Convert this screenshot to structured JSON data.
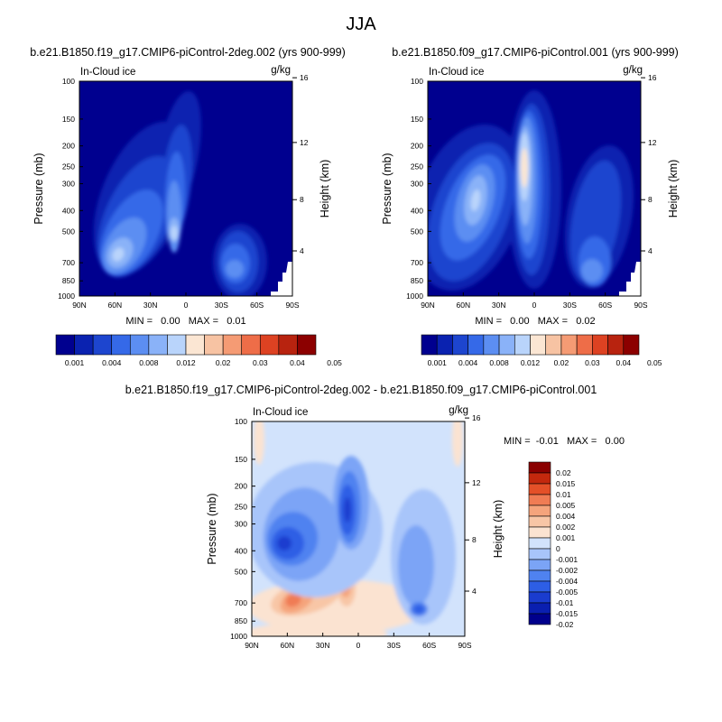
{
  "figure_title": "JJA",
  "chart_data": [
    {
      "type": "heatmap",
      "title": "b.e21.B1850.f19_g17.CMIP6-piControl-2deg.002 (yrs 900-999)",
      "subtitle": "In-Cloud ice",
      "units": "g/kg",
      "ylabel": "Pressure (mb)",
      "ylabel_right": "Height (km)",
      "x_ticks": [
        "90N",
        "60N",
        "30N",
        "0",
        "30S",
        "60S",
        "90S"
      ],
      "y_ticks": [
        100,
        150,
        200,
        250,
        300,
        400,
        500,
        700,
        850,
        1000
      ],
      "y_ticks_right": [
        16,
        12,
        8,
        4
      ],
      "ylim": [
        1000,
        100
      ],
      "stats_text": "MIN =   0.00   MAX =   0.01",
      "stats": {
        "min": 0.0,
        "max": 0.01
      },
      "colorbar_levels": [
        "0.001",
        "0.004",
        "0.008",
        "0.012",
        "0.02",
        "0.03",
        "0.04",
        "0.05"
      ]
    },
    {
      "type": "heatmap",
      "title": "b.e21.B1850.f09_g17.CMIP6-piControl.001 (yrs 900-999)",
      "subtitle": "In-Cloud ice",
      "units": "g/kg",
      "ylabel": "Pressure (mb)",
      "ylabel_right": "Height (km)",
      "x_ticks": [
        "90N",
        "60N",
        "30N",
        "0",
        "30S",
        "60S",
        "90S"
      ],
      "y_ticks": [
        100,
        150,
        200,
        250,
        300,
        400,
        500,
        700,
        850,
        1000
      ],
      "y_ticks_right": [
        16,
        12,
        8,
        4
      ],
      "ylim": [
        1000,
        100
      ],
      "stats_text": "MIN =   0.00   MAX =   0.02",
      "stats": {
        "min": 0.0,
        "max": 0.02
      },
      "colorbar_levels": [
        "0.001",
        "0.004",
        "0.008",
        "0.012",
        "0.02",
        "0.03",
        "0.04",
        "0.05"
      ]
    },
    {
      "type": "heatmap",
      "title": "b.e21.B1850.f19_g17.CMIP6-piControl-2deg.002 - b.e21.B1850.f09_g17.CMIP6-piControl.001",
      "subtitle": "In-Cloud ice",
      "units": "g/kg",
      "ylabel": "Pressure (mb)",
      "ylabel_right": "Height (km)",
      "x_ticks": [
        "90N",
        "60N",
        "30N",
        "0",
        "30S",
        "60S",
        "90S"
      ],
      "y_ticks": [
        100,
        150,
        200,
        250,
        300,
        400,
        500,
        700,
        850,
        1000
      ],
      "y_ticks_right": [
        16,
        12,
        8,
        4
      ],
      "ylim": [
        1000,
        100
      ],
      "stats_text": "MIN =  -0.01   MAX =   0.00",
      "stats": {
        "min": -0.01,
        "max": 0.0
      },
      "colorbar_levels": [
        "0.02",
        "0.015",
        "0.01",
        "0.005",
        "0.004",
        "0.002",
        "0.001",
        "0",
        "-0.001",
        "-0.002",
        "-0.004",
        "-0.005",
        "-0.01",
        "-0.015",
        "-0.02"
      ]
    }
  ],
  "colors": {
    "seq": [
      "#00008f",
      "#0a22b0",
      "#1d45cf",
      "#3569e8",
      "#5c8ef2",
      "#8ab2f8",
      "#b9d4fb",
      "#fbe6d3",
      "#f7c3a3",
      "#f59b74",
      "#ee6d48",
      "#dd4222",
      "#b8230f",
      "#8c0000"
    ],
    "div": [
      "#00008c",
      "#0a1fb0",
      "#1a3ccf",
      "#2d5ee5",
      "#4f82f0",
      "#7ba4f6",
      "#a8c5fa",
      "#d2e3fc",
      "#fbe3d1",
      "#f8c6a6",
      "#f5a47c",
      "#f07c54",
      "#e45028",
      "#c3280d",
      "#8a0000"
    ],
    "div_bg": "#d2e3fc"
  }
}
